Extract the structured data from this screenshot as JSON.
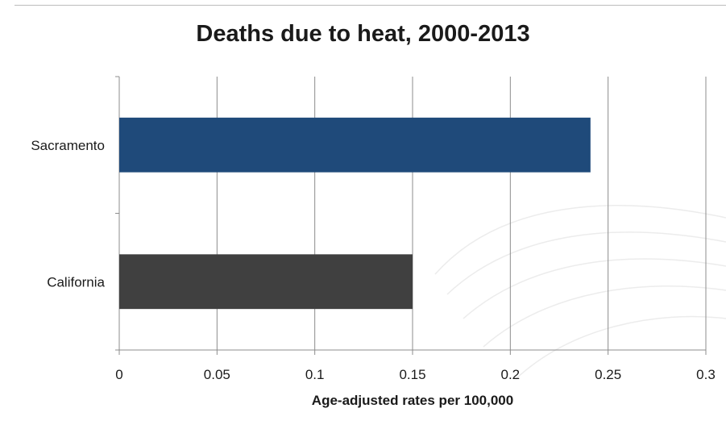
{
  "chart_data": {
    "type": "bar",
    "orientation": "horizontal",
    "title": "Deaths due to heat, 2000-2013",
    "xlabel": "Age-adjusted rates per 100,000",
    "ylabel": "",
    "categories": [
      "Sacramento",
      "California"
    ],
    "values": [
      0.241,
      0.15
    ],
    "xlim": [
      0,
      0.3
    ],
    "xticks": [
      "0",
      "0.05",
      "0.1",
      "0.15",
      "0.2",
      "0.25",
      "0.3"
    ],
    "grid": "vertical",
    "legend": "none",
    "colors": [
      "#1f4a7a",
      "#404040"
    ]
  }
}
